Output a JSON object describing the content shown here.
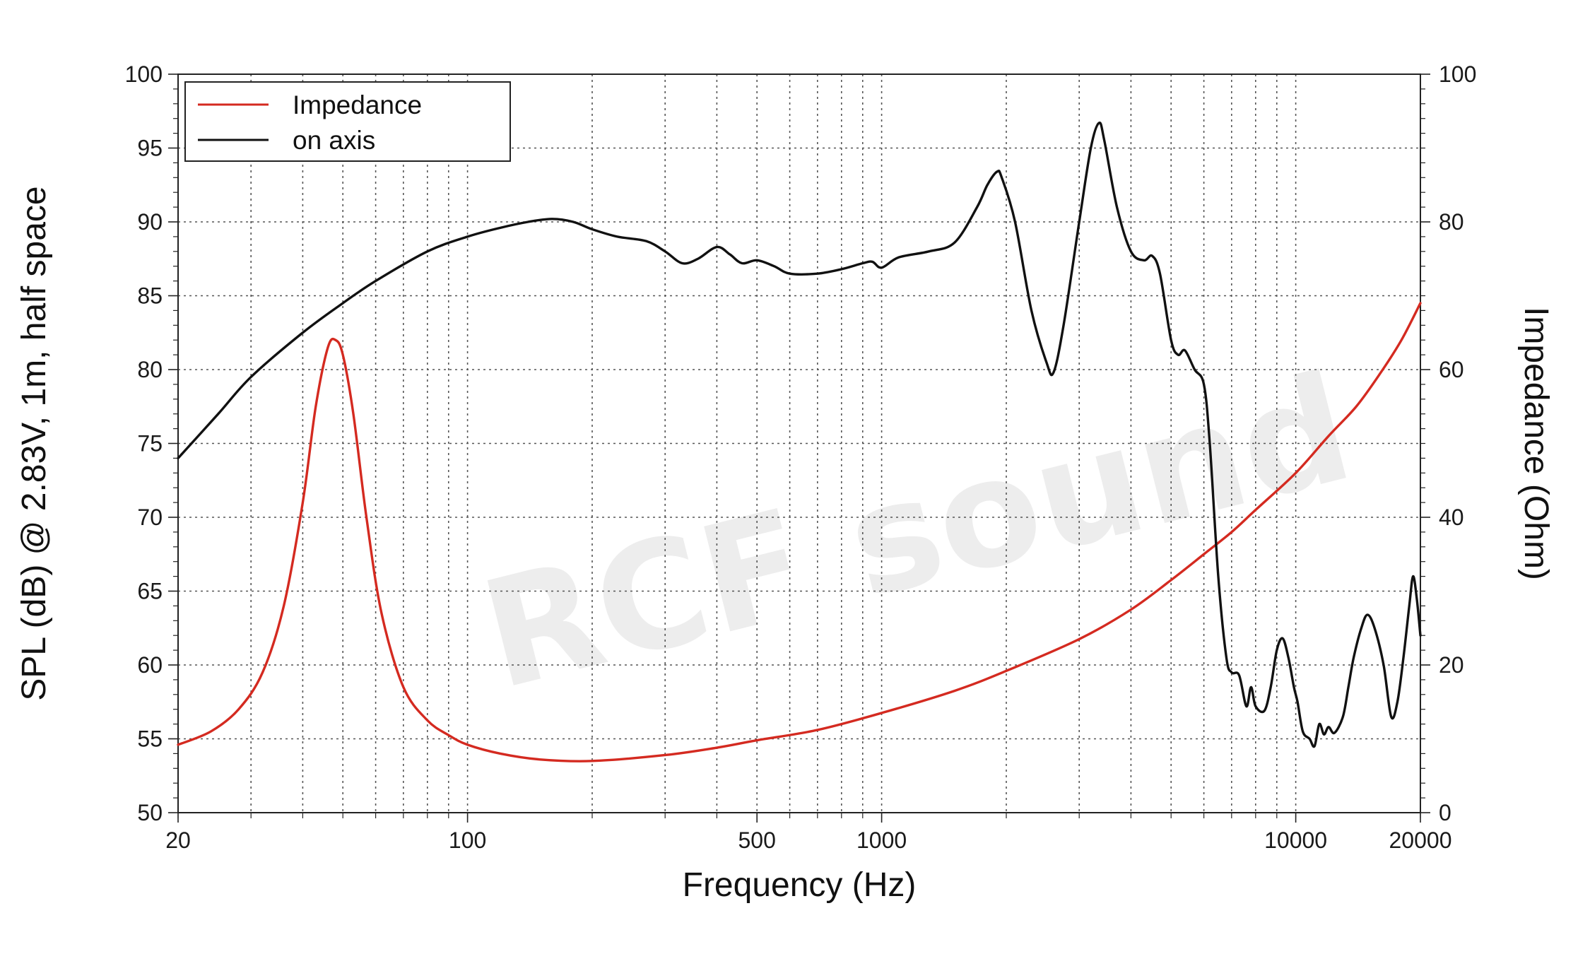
{
  "chart_data": {
    "type": "line",
    "xlabel": "Frequency (Hz)",
    "ylabel": "SPL (dB) @ 2.83V, 1m, half space",
    "y2label": "Impedance (Ohm)",
    "xscale": "log",
    "xlim": [
      20,
      20000
    ],
    "ylim": [
      50,
      100
    ],
    "y2lim": [
      0,
      100
    ],
    "x_tick_labels": [
      "20",
      "100",
      "500",
      "1000",
      "10000",
      "20000"
    ],
    "x_ticks": [
      20,
      100,
      500,
      1000,
      10000,
      20000
    ],
    "y_ticks": [
      50,
      55,
      60,
      65,
      70,
      75,
      80,
      85,
      90,
      95,
      100
    ],
    "y2_ticks": [
      0,
      20,
      40,
      60,
      80,
      100
    ],
    "grid": true,
    "legend_position": "top-left",
    "watermark": "RCF sound",
    "series": [
      {
        "name": "Impedance",
        "axis": "right",
        "color": "#d42a20",
        "points": [
          [
            20,
            9.2
          ],
          [
            24,
            11
          ],
          [
            28,
            14
          ],
          [
            32,
            19
          ],
          [
            36,
            28
          ],
          [
            40,
            42
          ],
          [
            43,
            55
          ],
          [
            46,
            63
          ],
          [
            48,
            64
          ],
          [
            50,
            62
          ],
          [
            53,
            54
          ],
          [
            57,
            40
          ],
          [
            62,
            27
          ],
          [
            70,
            17
          ],
          [
            80,
            12.5
          ],
          [
            90,
            10.5
          ],
          [
            100,
            9.2
          ],
          [
            120,
            8
          ],
          [
            150,
            7.2
          ],
          [
            200,
            7
          ],
          [
            300,
            7.8
          ],
          [
            400,
            8.8
          ],
          [
            500,
            9.8
          ],
          [
            700,
            11.2
          ],
          [
            1000,
            13.5
          ],
          [
            1500,
            16.5
          ],
          [
            2000,
            19.2
          ],
          [
            3000,
            23.5
          ],
          [
            4000,
            27.5
          ],
          [
            5000,
            31.5
          ],
          [
            6000,
            35
          ],
          [
            7000,
            38
          ],
          [
            8000,
            41
          ],
          [
            10000,
            46
          ],
          [
            12000,
            51
          ],
          [
            14000,
            55
          ],
          [
            16000,
            59.5
          ],
          [
            18000,
            64
          ],
          [
            20000,
            69
          ]
        ]
      },
      {
        "name": "on axis",
        "axis": "left",
        "color": "#111111",
        "points": [
          [
            20,
            74
          ],
          [
            25,
            77
          ],
          [
            30,
            79.5
          ],
          [
            40,
            82.5
          ],
          [
            50,
            84.5
          ],
          [
            60,
            86
          ],
          [
            80,
            88
          ],
          [
            100,
            89
          ],
          [
            120,
            89.6
          ],
          [
            140,
            90
          ],
          [
            160,
            90.2
          ],
          [
            180,
            90
          ],
          [
            200,
            89.5
          ],
          [
            230,
            89
          ],
          [
            270,
            88.7
          ],
          [
            300,
            88
          ],
          [
            330,
            87.2
          ],
          [
            360,
            87.5
          ],
          [
            400,
            88.3
          ],
          [
            430,
            87.8
          ],
          [
            460,
            87.2
          ],
          [
            500,
            87.4
          ],
          [
            550,
            87
          ],
          [
            600,
            86.5
          ],
          [
            700,
            86.5
          ],
          [
            800,
            86.8
          ],
          [
            900,
            87.2
          ],
          [
            950,
            87.3
          ],
          [
            1000,
            86.9
          ],
          [
            1100,
            87.6
          ],
          [
            1300,
            88
          ],
          [
            1500,
            88.6
          ],
          [
            1700,
            91
          ],
          [
            1800,
            92.5
          ],
          [
            1900,
            93.4
          ],
          [
            1950,
            93
          ],
          [
            2100,
            90
          ],
          [
            2300,
            84
          ],
          [
            2500,
            80.5
          ],
          [
            2600,
            79.8
          ],
          [
            2750,
            83
          ],
          [
            3000,
            90
          ],
          [
            3200,
            95
          ],
          [
            3350,
            96.7
          ],
          [
            3450,
            95.5
          ],
          [
            3700,
            91
          ],
          [
            4000,
            88
          ],
          [
            4300,
            87.4
          ],
          [
            4500,
            87.7
          ],
          [
            4700,
            86.5
          ],
          [
            5000,
            82
          ],
          [
            5200,
            81
          ],
          [
            5400,
            81.3
          ],
          [
            5700,
            80
          ],
          [
            6000,
            79
          ],
          [
            6200,
            75
          ],
          [
            6500,
            66
          ],
          [
            6800,
            60.5
          ],
          [
            7000,
            59.5
          ],
          [
            7300,
            59.3
          ],
          [
            7600,
            57.2
          ],
          [
            7800,
            58.5
          ],
          [
            8000,
            57.2
          ],
          [
            8400,
            56.9
          ],
          [
            8700,
            58.5
          ],
          [
            9000,
            61
          ],
          [
            9300,
            61.8
          ],
          [
            9600,
            60.5
          ],
          [
            9900,
            58.5
          ],
          [
            10100,
            57.5
          ],
          [
            10400,
            55.5
          ],
          [
            10800,
            55
          ],
          [
            11100,
            54.5
          ],
          [
            11400,
            56
          ],
          [
            11700,
            55.3
          ],
          [
            12000,
            55.8
          ],
          [
            12400,
            55.4
          ],
          [
            13000,
            56.5
          ],
          [
            13400,
            58.5
          ],
          [
            13800,
            60.5
          ],
          [
            14400,
            62.5
          ],
          [
            14900,
            63.4
          ],
          [
            15500,
            62.5
          ],
          [
            16300,
            60
          ],
          [
            17000,
            56.5
          ],
          [
            17600,
            57.5
          ],
          [
            18200,
            60.5
          ],
          [
            18800,
            64
          ],
          [
            19200,
            66
          ],
          [
            19600,
            64.5
          ],
          [
            20000,
            62
          ]
        ]
      }
    ]
  }
}
